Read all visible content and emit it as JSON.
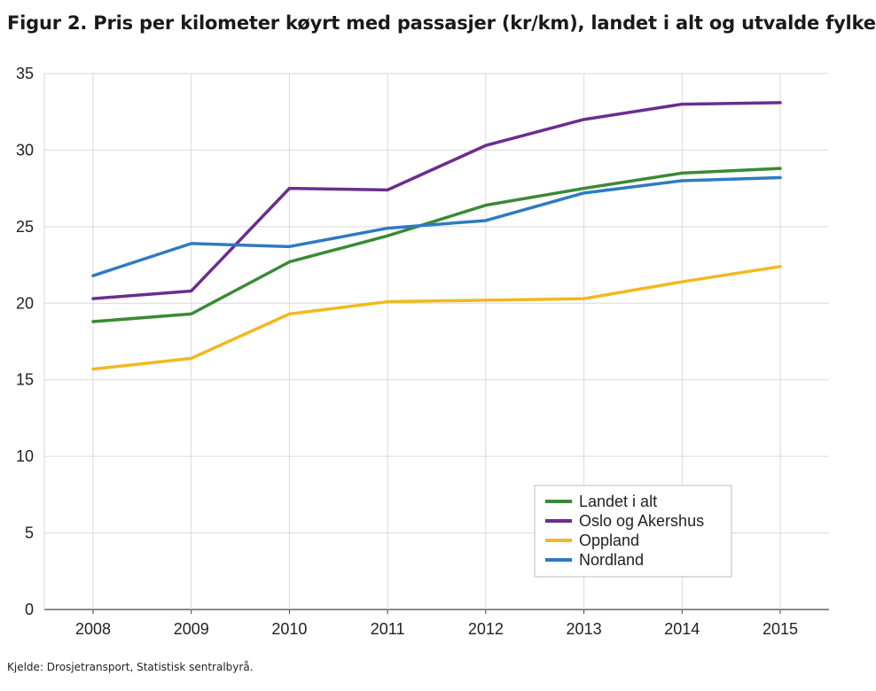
{
  "title": "Figur 2. Pris per kilometer køyrt med passasjer (kr/km), landet i alt og utvalde fylke",
  "source": "Kjelde: Drosjetransport, Statistisk sentralbyrå.",
  "chart_data": {
    "type": "line",
    "title": "Figur 2. Pris per kilometer køyrt med passasjer (kr/km), landet i alt og utvalde fylke",
    "xlabel": "",
    "ylabel": "",
    "x": [
      "2008",
      "2009",
      "2010",
      "2011",
      "2012",
      "2013",
      "2014",
      "2015"
    ],
    "ylim": [
      0,
      35
    ],
    "yticks": [
      0,
      5,
      10,
      15,
      20,
      25,
      30,
      35
    ],
    "grid": true,
    "legend_position": "bottom-right",
    "series": [
      {
        "name": "Landet i alt",
        "color": "#3a8a35",
        "values": [
          18.8,
          19.3,
          22.7,
          24.4,
          26.4,
          27.5,
          28.5,
          28.8
        ]
      },
      {
        "name": "Oslo og Akershus",
        "color": "#6b2d8f",
        "values": [
          20.3,
          20.8,
          27.5,
          27.4,
          30.3,
          32.0,
          33.0,
          33.1
        ]
      },
      {
        "name": "Oppland",
        "color": "#f2b91e",
        "values": [
          15.7,
          16.4,
          19.3,
          20.1,
          20.2,
          20.3,
          21.4,
          22.4
        ]
      },
      {
        "name": "Nordland",
        "color": "#2f7ac2",
        "values": [
          21.8,
          23.9,
          23.7,
          24.9,
          25.4,
          27.2,
          28.0,
          28.2
        ]
      }
    ]
  }
}
